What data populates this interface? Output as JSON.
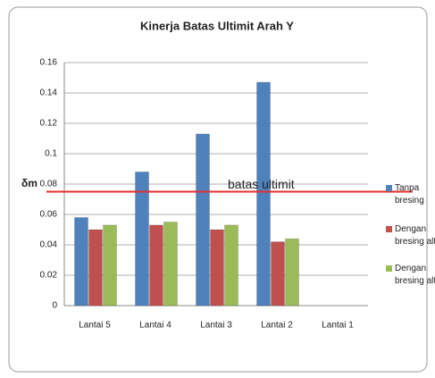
{
  "chart_data": {
    "type": "bar",
    "title": "Kinerja Batas Ultimit Arah Y",
    "y_label": "δm",
    "categories": [
      "Lantai 5",
      "Lantai 4",
      "Lantai 3",
      "Lantai 2",
      "Lantai 1"
    ],
    "series": [
      {
        "name": "Tanpa bresing",
        "color": "#4f81bd",
        "values": [
          0.058,
          0.088,
          0.113,
          0.147,
          null
        ]
      },
      {
        "name": "Dengan bresing alt",
        "color": "#c0504d",
        "values": [
          0.05,
          0.053,
          0.05,
          0.042,
          null
        ]
      },
      {
        "name": "Dengan bresing alt",
        "color": "#9bbb59",
        "values": [
          0.053,
          0.055,
          0.053,
          0.044,
          null
        ]
      }
    ],
    "threshold": {
      "label": "batas ultimit",
      "value": 0.075,
      "color": "#e03030"
    },
    "ylim": [
      0,
      0.16
    ],
    "yticks": [
      0,
      0.02,
      0.04,
      0.06,
      0.08,
      0.1,
      0.12,
      0.14,
      0.16
    ],
    "grid": true,
    "legend": "right"
  }
}
